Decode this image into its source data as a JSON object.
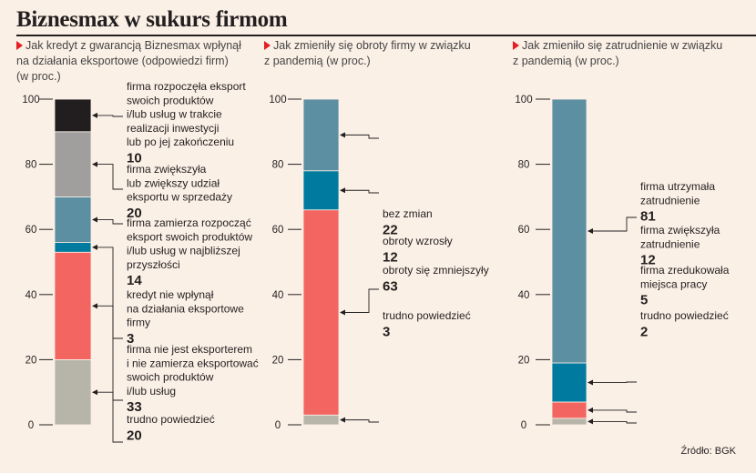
{
  "title": "Biznesmax w sukurs firmom",
  "source": "Źródło: BGK",
  "chart_data": [
    {
      "type": "bar",
      "subtype": "stacked-100",
      "subtitle": "Jak kredyt z gwarancją Biznesmax wpłynął na działania eksportowe (odpowiedzi firm) (w proc.)",
      "subtitle_lines": [
        "Jak kredyt z gwarancją Biznesmax wpłynął",
        "na działania eksportowe (odpowiedzi firm)",
        "(w proc.)"
      ],
      "ylim": [
        0,
        100
      ],
      "yticks": [
        0,
        20,
        40,
        60,
        80,
        100
      ],
      "segments": [
        {
          "label": "trudno powiedzieć",
          "label_lines": [
            "trudno powiedzieć"
          ],
          "value": 20,
          "color": "#b7b5a9"
        },
        {
          "label": "firma nie jest eksporterem i nie zamierza eksportować swoich produktów i/lub usług",
          "label_lines": [
            "firma nie jest eksporterem",
            "i nie zamierza eksportować",
            "swoich produktów",
            "i/lub usług"
          ],
          "value": 33,
          "color": "#f26561"
        },
        {
          "label": "kredyt nie wpłynął na działania eksportowe firmy",
          "label_lines": [
            "kredyt nie wpłynął",
            "na działania eksportowe",
            "firmy"
          ],
          "value": 3,
          "color": "#007b9f"
        },
        {
          "label": "firma zamierza rozpocząć eksport swoich produktów i/lub usług w najbliższej przyszłości",
          "label_lines": [
            "firma zamierza rozpocząć",
            "eksport swoich produktów",
            "i/lub usług w najbliższej",
            "przyszłości"
          ],
          "value": 14,
          "color": "#5d8fa2"
        },
        {
          "label": "firma zwiększyła lub zwiększy udział eksportu w sprzedaży",
          "label_lines": [
            "firma zwiększyła",
            "lub zwiększy udział",
            "eksportu w sprzedaży"
          ],
          "value": 20,
          "color": "#a09f9e"
        },
        {
          "label": "firma rozpoczęła eksport swoich produktów i/lub usług w trakcie realizacji inwestycji lub po jej zakończeniu",
          "label_lines": [
            "firma rozpoczęła eksport",
            "swoich produktów",
            "i/lub usług w trakcie",
            "realizacji inwestycji",
            "lub po jej zakończeniu"
          ],
          "value": 10,
          "color": "#221e1f"
        }
      ]
    },
    {
      "type": "bar",
      "subtype": "stacked-100",
      "subtitle": "Jak zmieniły się obroty firmy w związku z pandemią (w proc.)",
      "subtitle_lines": [
        "Jak zmieniły się obroty firmy w związku",
        "z pandemią (w proc.)"
      ],
      "ylim": [
        0,
        100
      ],
      "yticks": [
        0,
        20,
        40,
        60,
        80,
        100
      ],
      "segments": [
        {
          "label": "trudno powiedzieć",
          "label_lines": [
            "trudno powiedzieć"
          ],
          "value": 3,
          "color": "#b7b5a9"
        },
        {
          "label": "obroty się zmniejszyły",
          "label_lines": [
            "obroty się zmniejszyły"
          ],
          "value": 63,
          "color": "#f26561"
        },
        {
          "label": "obroty wzrosły",
          "label_lines": [
            "obroty wzrosły"
          ],
          "value": 12,
          "color": "#007b9f"
        },
        {
          "label": "bez zmian",
          "label_lines": [
            "bez zmian"
          ],
          "value": 22,
          "color": "#5d8fa2"
        }
      ]
    },
    {
      "type": "bar",
      "subtype": "stacked-100",
      "subtitle": "Jak zmieniło się zatrudnienie w związku z pandemią (w proc.)",
      "subtitle_lines": [
        "Jak zmieniło się zatrudnienie w związku",
        "z pandemią (w proc.)"
      ],
      "ylim": [
        0,
        100
      ],
      "yticks": [
        0,
        20,
        40,
        60,
        80,
        100
      ],
      "segments": [
        {
          "label": "trudno powiedzieć",
          "label_lines": [
            "trudno powiedzieć"
          ],
          "value": 2,
          "color": "#b7b5a9"
        },
        {
          "label": "firma zredukowała miejsca pracy",
          "label_lines": [
            "firma zredukowała",
            "miejsca pracy"
          ],
          "value": 5,
          "color": "#f26561"
        },
        {
          "label": "firma zwiększyła zatrudnienie",
          "label_lines": [
            "firma zwiększyła",
            "zatrudnienie"
          ],
          "value": 12,
          "color": "#007b9f"
        },
        {
          "label": "firma utrzymała zatrudnienie",
          "label_lines": [
            "firma utrzymała",
            "zatrudnienie"
          ],
          "value": 81,
          "color": "#5d8fa2"
        }
      ]
    }
  ]
}
